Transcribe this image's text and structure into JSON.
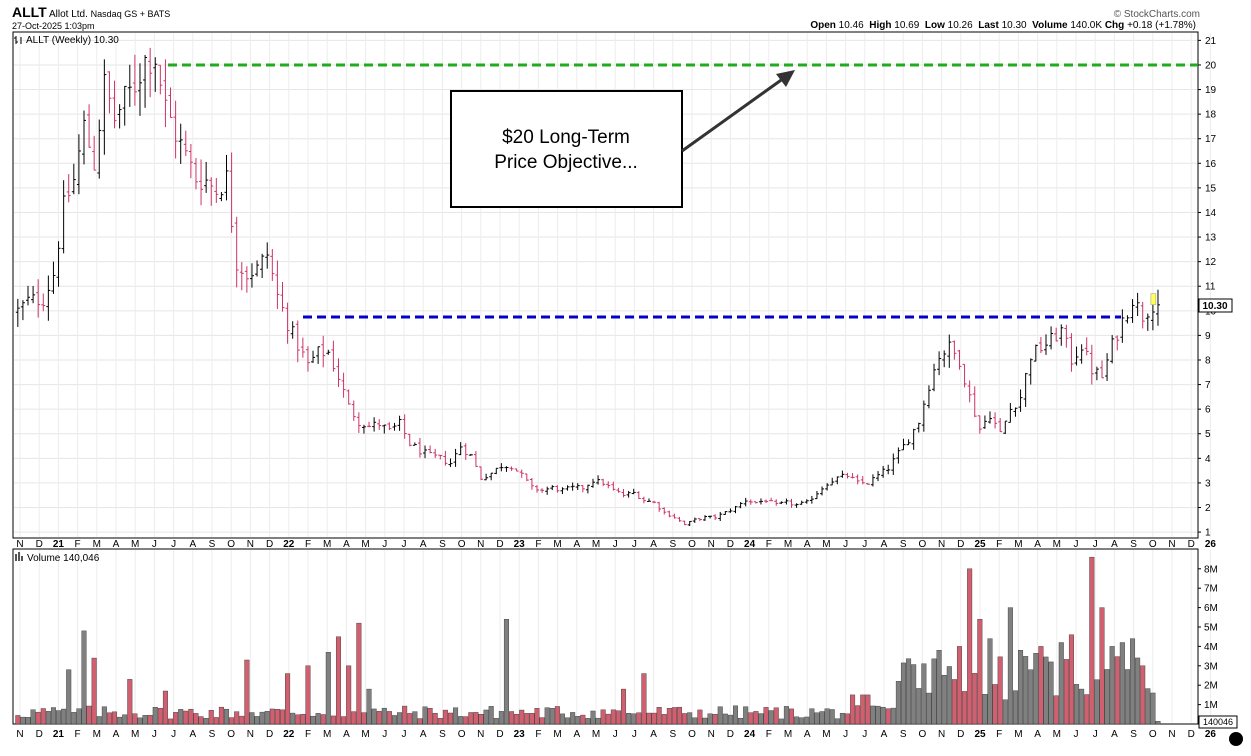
{
  "header": {
    "symbol": "ALLT",
    "company": "Allot Ltd.",
    "exchange": "Nasdaq GS + BATS",
    "datetime": "27-Oct-2025 1:03pm",
    "watermark": "© StockCharts.com",
    "quote": {
      "open_label": "Open",
      "open": "10.46",
      "high_label": "High",
      "high": "10.69",
      "low_label": "Low",
      "low": "10.26",
      "last_label": "Last",
      "last": "10.30",
      "volume_label": "Volume",
      "volume": "140.0K",
      "chg_label": "Chg",
      "chg": "+0.18 (+1.78%)"
    }
  },
  "colors": {
    "up": "#000000",
    "down": "#cc3366",
    "vol_up": "#808080",
    "vol_down": "#d06070",
    "resistance": "#0000cc",
    "objective": "#22aa22"
  },
  "chart_data": [
    {
      "type": "ohlc",
      "legend": "ALLT (Weekly) 10.30",
      "last_price_label": "10.30",
      "x_axis_ticks": [
        "N",
        "D",
        "21",
        "F",
        "M",
        "A",
        "M",
        "J",
        "J",
        "A",
        "S",
        "O",
        "N",
        "D",
        "22",
        "F",
        "M",
        "A",
        "M",
        "J",
        "J",
        "A",
        "S",
        "O",
        "N",
        "D",
        "23",
        "F",
        "M",
        "A",
        "M",
        "J",
        "J",
        "A",
        "S",
        "O",
        "N",
        "D",
        "24",
        "F",
        "M",
        "A",
        "M",
        "J",
        "J",
        "A",
        "S",
        "O",
        "N",
        "D",
        "25",
        "F",
        "M",
        "A",
        "M",
        "J",
        "J",
        "A",
        "S",
        "O",
        "N",
        "D",
        "26"
      ],
      "y_axis_ticks": [
        1,
        2,
        3,
        4,
        5,
        6,
        7,
        8,
        9,
        10,
        11,
        12,
        13,
        14,
        15,
        16,
        17,
        18,
        19,
        20,
        21
      ],
      "ylim": [
        0.8,
        21.3
      ],
      "annotation": {
        "text_line1": "$20 Long-Term",
        "text_line2": "Price Objective..."
      },
      "lines": [
        {
          "name": "resistance",
          "y": 9.75,
          "x_start": "2022-02",
          "x_end": "2025-08"
        },
        {
          "name": "objective",
          "y": 20.0,
          "x_start": "2021-07",
          "x_end": "2025-11"
        }
      ],
      "price_path": [
        [
          -2,
          10.0
        ],
        [
          0,
          10.4
        ],
        [
          3,
          10.5
        ],
        [
          5,
          11.5
        ],
        [
          7,
          14.2
        ],
        [
          9,
          15.3
        ],
        [
          11,
          17.5
        ],
        [
          13,
          16.0
        ],
        [
          15,
          19.2
        ],
        [
          17,
          17.8
        ],
        [
          19,
          18.6
        ],
        [
          21,
          19.2
        ],
        [
          23,
          20.2
        ],
        [
          25,
          20.3
        ],
        [
          27,
          18.3
        ],
        [
          29,
          17.2
        ],
        [
          31,
          16.3
        ],
        [
          33,
          15.4
        ],
        [
          35,
          15.3
        ],
        [
          37,
          14.9
        ],
        [
          39,
          15.4
        ],
        [
          41,
          12.0
        ],
        [
          43,
          11.5
        ],
        [
          45,
          11.7
        ],
        [
          47,
          12.3
        ],
        [
          49,
          10.6
        ],
        [
          51,
          9.5
        ],
        [
          53,
          8.6
        ],
        [
          55,
          7.8
        ],
        [
          57,
          8.3
        ],
        [
          59,
          8.3
        ],
        [
          61,
          7.3
        ],
        [
          63,
          6.1
        ],
        [
          65,
          5.5
        ],
        [
          67,
          5.3
        ],
        [
          69,
          5.4
        ],
        [
          71,
          5.1
        ],
        [
          73,
          5.4
        ],
        [
          75,
          4.6
        ],
        [
          77,
          4.3
        ],
        [
          79,
          4.1
        ],
        [
          81,
          4.0
        ],
        [
          83,
          3.8
        ],
        [
          85,
          4.5
        ],
        [
          87,
          4.1
        ],
        [
          89,
          3.2
        ],
        [
          91,
          3.4
        ],
        [
          93,
          3.7
        ],
        [
          95,
          3.7
        ],
        [
          97,
          3.3
        ],
        [
          99,
          2.8
        ],
        [
          101,
          2.7
        ],
        [
          103,
          2.8
        ],
        [
          105,
          2.7
        ],
        [
          107,
          2.8
        ],
        [
          109,
          2.8
        ],
        [
          111,
          3.1
        ],
        [
          113,
          3.0
        ],
        [
          115,
          2.7
        ],
        [
          117,
          2.5
        ],
        [
          119,
          2.6
        ],
        [
          121,
          2.3
        ],
        [
          123,
          2.2
        ],
        [
          125,
          1.8
        ],
        [
          127,
          1.6
        ],
        [
          129,
          1.3
        ],
        [
          131,
          1.5
        ],
        [
          133,
          1.6
        ],
        [
          135,
          1.6
        ],
        [
          137,
          1.8
        ],
        [
          139,
          2.0
        ],
        [
          141,
          2.3
        ],
        [
          143,
          2.2
        ],
        [
          145,
          2.3
        ],
        [
          147,
          2.1
        ],
        [
          149,
          2.2
        ],
        [
          151,
          2.1
        ],
        [
          153,
          2.2
        ],
        [
          155,
          2.6
        ],
        [
          157,
          3.0
        ],
        [
          159,
          3.2
        ],
        [
          161,
          3.3
        ],
        [
          163,
          3.0
        ],
        [
          165,
          3.0
        ],
        [
          167,
          3.3
        ],
        [
          169,
          3.6
        ],
        [
          171,
          4.2
        ],
        [
          173,
          4.8
        ],
        [
          175,
          5.5
        ],
        [
          177,
          7.0
        ],
        [
          179,
          8.2
        ],
        [
          181,
          8.5
        ],
        [
          183,
          8.0
        ],
        [
          185,
          6.5
        ],
        [
          187,
          5.2
        ],
        [
          189,
          5.8
        ],
        [
          191,
          5.0
        ],
        [
          193,
          6.0
        ],
        [
          195,
          6.5
        ],
        [
          197,
          8.2
        ],
        [
          199,
          8.5
        ],
        [
          201,
          8.8
        ],
        [
          203,
          9.2
        ],
        [
          205,
          8.0
        ],
        [
          207,
          8.6
        ],
        [
          209,
          7.6
        ],
        [
          211,
          7.3
        ],
        [
          213,
          8.6
        ],
        [
          215,
          9.6
        ],
        [
          217,
          10.5
        ],
        [
          219,
          9.8
        ],
        [
          221,
          10.3
        ]
      ]
    },
    {
      "type": "bar",
      "legend": "Volume 140,046",
      "last_volume_label": "140046",
      "y_axis_ticks": [
        "1M",
        "2M",
        "3M",
        "4M",
        "5M",
        "6M",
        "7M",
        "8M"
      ],
      "ylim": [
        0,
        8.8
      ],
      "unit": "M shares",
      "spikes": [
        [
          8,
          2.8
        ],
        [
          11,
          4.8
        ],
        [
          13,
          3.4
        ],
        [
          20,
          2.3
        ],
        [
          27,
          1.7
        ],
        [
          43,
          3.3
        ],
        [
          51,
          2.6
        ],
        [
          55,
          3.0
        ],
        [
          59,
          3.7
        ],
        [
          61,
          4.5
        ],
        [
          63,
          3.0
        ],
        [
          65,
          5.2
        ],
        [
          67,
          1.8
        ],
        [
          94,
          5.4
        ],
        [
          117,
          1.8
        ],
        [
          121,
          2.6
        ],
        [
          162,
          1.5
        ],
        [
          164,
          1.5
        ],
        [
          165,
          1.5
        ],
        [
          171,
          2.2
        ],
        [
          179,
          3.8
        ],
        [
          183,
          4.0
        ],
        [
          185,
          8.0
        ],
        [
          187,
          5.4
        ],
        [
          189,
          4.4
        ],
        [
          193,
          6.0
        ],
        [
          195,
          3.8
        ],
        [
          197,
          2.8
        ],
        [
          199,
          4.0
        ],
        [
          201,
          3.2
        ],
        [
          203,
          4.2
        ],
        [
          205,
          4.6
        ],
        [
          209,
          8.6
        ],
        [
          211,
          6.0
        ],
        [
          213,
          4.0
        ],
        [
          215,
          4.2
        ],
        [
          217,
          4.4
        ],
        [
          219,
          3.0
        ],
        [
          221,
          1.6
        ],
        [
          222,
          0.14
        ]
      ]
    }
  ]
}
